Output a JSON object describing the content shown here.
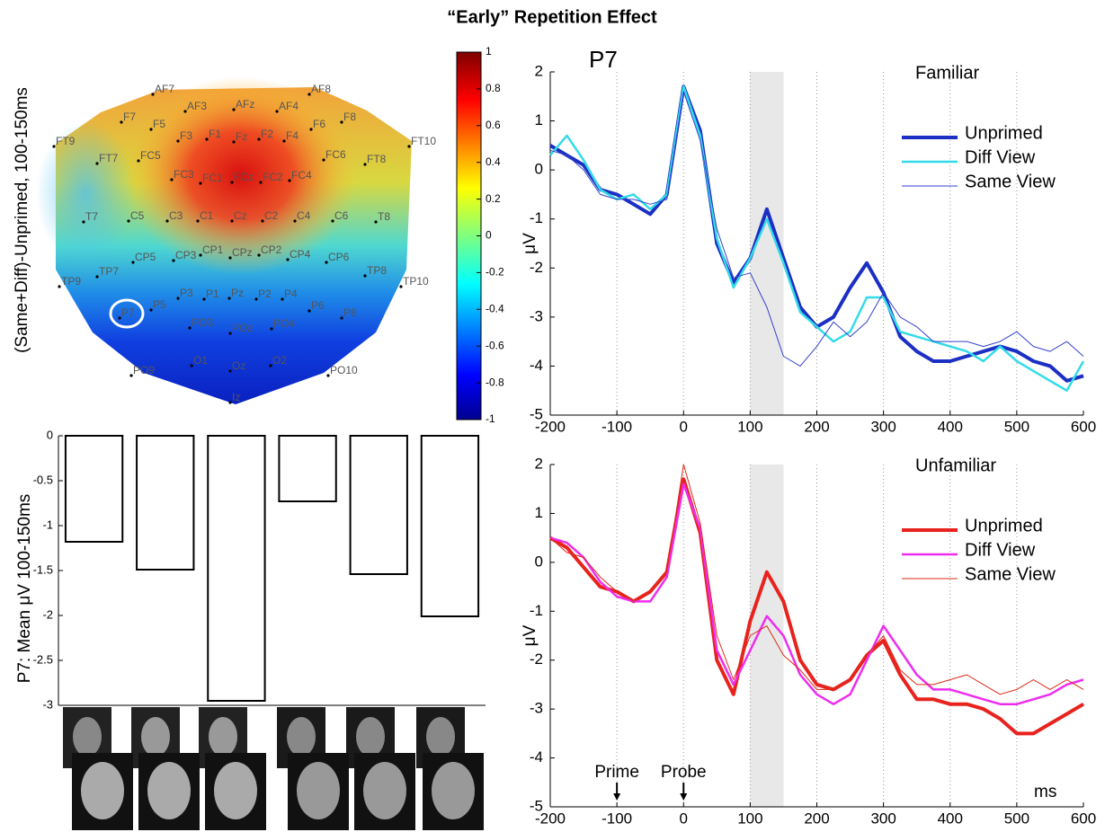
{
  "title": "“Early” Repetition Effect",
  "chart_data": [
    {
      "type": "topomap",
      "ylabel": "(Same+Diff)-Unprimed, 100-150ms",
      "electrodes": [
        "AF7",
        "AF8",
        "AF3",
        "AFz",
        "AF4",
        "F7",
        "F5",
        "F6",
        "F8",
        "FT9",
        "F3",
        "F1",
        "Fz",
        "F2",
        "F4",
        "FT10",
        "FT7",
        "FC5",
        "FC6",
        "FT8",
        "FC3",
        "FC1",
        "FCz",
        "FC2",
        "FC4",
        "T7",
        "C5",
        "C3",
        "C1",
        "Cz",
        "C2",
        "C4",
        "C6",
        "T8",
        "CP5",
        "CP3",
        "CP1",
        "CPz",
        "CP2",
        "CP4",
        "CP6",
        "TP7",
        "TP8",
        "TP9",
        "TP10",
        "P7",
        "P5",
        "P3",
        "P1",
        "Pz",
        "P2",
        "P4",
        "P6",
        "P8",
        "PO3",
        "POz",
        "PO4",
        "O1",
        "Oz",
        "O2",
        "PO9",
        "PO10",
        "Iz"
      ],
      "clim": [
        -1,
        1
      ],
      "cticks": [
        1,
        0.8,
        0.6,
        0.4,
        0.2,
        0,
        -0.2,
        -0.4,
        -0.6,
        -0.8,
        -1
      ]
    },
    {
      "type": "bar",
      "ylabel": "P7: Mean μV 100-150ms",
      "categories": [
        null,
        null,
        null,
        null,
        null,
        null
      ],
      "values": [
        -1.18,
        -1.49,
        -2.95,
        -0.73,
        -1.54,
        -2.01
      ],
      "ylim": [
        -3,
        0
      ],
      "yticks": [
        0,
        -0.5,
        -1,
        -1.5,
        -2,
        -2.5,
        -3
      ],
      "color": "#ffffff"
    },
    {
      "type": "line",
      "panel_label": "P7",
      "annotation": "Familiar",
      "ylabel": "μV",
      "x": [
        -200,
        -175,
        -150,
        -125,
        -100,
        -75,
        -50,
        -25,
        0,
        25,
        50,
        75,
        100,
        125,
        150,
        175,
        200,
        225,
        250,
        275,
        300,
        325,
        350,
        375,
        400,
        425,
        450,
        475,
        500,
        525,
        550,
        575,
        600
      ],
      "series": [
        {
          "name": "Unprimed",
          "color": "#1c2fc4",
          "values": [
            0.5,
            0.3,
            0.1,
            -0.4,
            -0.5,
            -0.7,
            -0.9,
            -0.5,
            1.7,
            0.8,
            -1.5,
            -2.3,
            -1.8,
            -0.8,
            -1.8,
            -2.8,
            -3.2,
            -3.0,
            -2.4,
            -1.9,
            -2.5,
            -3.4,
            -3.7,
            -3.9,
            -3.9,
            -3.8,
            -3.7,
            -3.6,
            -3.7,
            -3.9,
            -4.0,
            -4.3,
            -4.2
          ]
        },
        {
          "name": "Diff View",
          "color": "#33dbe8",
          "values": [
            0.3,
            0.7,
            0.2,
            -0.4,
            -0.6,
            -0.5,
            -0.8,
            -0.5,
            1.7,
            0.7,
            -1.4,
            -2.4,
            -1.8,
            -1.0,
            -1.9,
            -2.9,
            -3.2,
            -3.5,
            -3.3,
            -2.6,
            -2.6,
            -3.3,
            -3.4,
            -3.5,
            -3.6,
            -3.7,
            -3.9,
            -3.6,
            -3.9,
            -4.1,
            -4.3,
            -4.5,
            -3.9
          ]
        },
        {
          "name": "Same View",
          "color": "#3340cc",
          "values": [
            0.4,
            0.3,
            0.0,
            -0.5,
            -0.6,
            -0.6,
            -0.7,
            -0.6,
            1.6,
            0.6,
            -1.2,
            -2.2,
            -2.1,
            -2.8,
            -3.8,
            -4.0,
            -3.6,
            -3.1,
            -3.4,
            -3.1,
            -2.5,
            -3.0,
            -3.2,
            -3.5,
            -3.5,
            -3.5,
            -3.6,
            -3.5,
            -3.3,
            -3.6,
            -3.7,
            -3.5,
            -3.8
          ]
        }
      ],
      "shade": [
        100,
        150
      ],
      "xlim": [
        -200,
        600
      ],
      "ylim": [
        -5,
        2
      ],
      "xticks": [
        -200,
        -100,
        0,
        100,
        200,
        300,
        400,
        500,
        600
      ],
      "yticks": [
        2,
        1,
        0,
        -1,
        -2,
        -3,
        -4,
        -5
      ],
      "grid": true,
      "legend": "upper right"
    },
    {
      "type": "line",
      "annotation": "Unfamiliar",
      "ylabel": "μV",
      "xlabel": "ms",
      "x": [
        -200,
        -175,
        -150,
        -125,
        -100,
        -75,
        -50,
        -25,
        0,
        25,
        50,
        75,
        100,
        125,
        150,
        175,
        200,
        225,
        250,
        275,
        300,
        325,
        350,
        375,
        400,
        425,
        450,
        475,
        500,
        525,
        550,
        575,
        600
      ],
      "series": [
        {
          "name": "Unprimed",
          "color": "#e8231e",
          "values": [
            0.5,
            0.3,
            -0.1,
            -0.5,
            -0.6,
            -0.8,
            -0.6,
            -0.2,
            1.7,
            0.6,
            -2.0,
            -2.7,
            -1.2,
            -0.2,
            -0.8,
            -2.0,
            -2.5,
            -2.6,
            -2.4,
            -1.9,
            -1.6,
            -2.3,
            -2.8,
            -2.8,
            -2.9,
            -2.9,
            -3.0,
            -3.2,
            -3.5,
            -3.5,
            -3.3,
            -3.1,
            -2.9
          ]
        },
        {
          "name": "Diff View",
          "color": "#ee2cee",
          "values": [
            0.5,
            0.4,
            0.1,
            -0.4,
            -0.7,
            -0.8,
            -0.8,
            -0.3,
            1.6,
            0.7,
            -1.8,
            -2.5,
            -1.8,
            -1.1,
            -1.5,
            -2.3,
            -2.7,
            -2.9,
            -2.7,
            -2.0,
            -1.3,
            -1.8,
            -2.3,
            -2.6,
            -2.6,
            -2.7,
            -2.8,
            -2.9,
            -2.9,
            -2.8,
            -2.7,
            -2.5,
            -2.4
          ]
        },
        {
          "name": "Same View",
          "color": "#dd2a1a",
          "values": [
            0.5,
            0.2,
            0.1,
            -0.3,
            -0.6,
            -0.8,
            -0.6,
            -0.2,
            2.0,
            0.8,
            -1.5,
            -2.4,
            -1.5,
            -1.3,
            -1.9,
            -2.2,
            -2.6,
            -2.6,
            -2.4,
            -1.9,
            -1.5,
            -2.2,
            -2.5,
            -2.5,
            -2.4,
            -2.3,
            -2.5,
            -2.7,
            -2.6,
            -2.4,
            -2.6,
            -2.4,
            -2.6
          ]
        }
      ],
      "markers": [
        {
          "label": "Prime",
          "x": -100
        },
        {
          "label": "Probe",
          "x": 0
        }
      ],
      "shade": [
        100,
        150
      ],
      "xlim": [
        -200,
        600
      ],
      "ylim": [
        -5,
        2
      ],
      "xticks": [
        -200,
        -100,
        0,
        100,
        200,
        300,
        400,
        500,
        600
      ],
      "yticks": [
        2,
        1,
        0,
        -1,
        -2,
        -3,
        -4,
        -5
      ],
      "grid": true,
      "legend": "upper right"
    }
  ]
}
